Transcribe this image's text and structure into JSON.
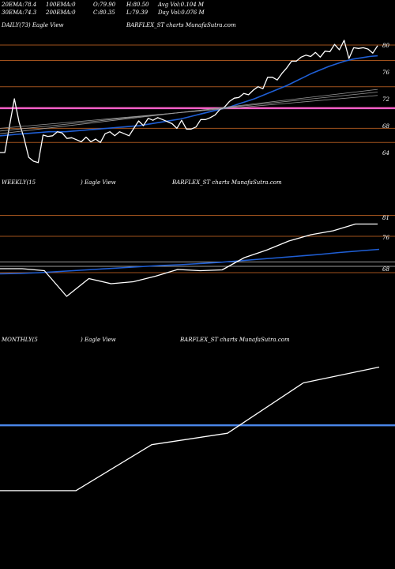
{
  "header": {
    "row1": [
      {
        "k": "20EMA:",
        "v": "78.4"
      },
      {
        "k": "100EMA:",
        "v": "0"
      },
      {
        "k": "O:",
        "v": "79.90"
      },
      {
        "k": "H:",
        "v": "80.50"
      },
      {
        "k": "Avg Vol:",
        "v": "0.104 M"
      }
    ],
    "row2": [
      {
        "k": "30EMA:",
        "v": "74.3"
      },
      {
        "k": "200EMA:",
        "v": "0"
      },
      {
        "k": "C:",
        "v": "80.35"
      },
      {
        "k": "L:",
        "v": "79.39"
      },
      {
        "k": "Day Vol:",
        "v": "0.076 M"
      }
    ]
  },
  "colors": {
    "background": "#000000",
    "price": "#ffffff",
    "ema": "#1f5fd6",
    "pink": "#ff5fc8",
    "orange": "#a0521d",
    "grey": "#9a9a9a",
    "monthly_line": "#4a86e8"
  },
  "chart_data": [
    {
      "type": "line",
      "panel_label": "DAILY(73) Eagle  View",
      "watermark": "BARFLEX_ST charts MunafaSutra.com",
      "ticks": [
        "80",
        "76",
        "72",
        "68",
        "64"
      ],
      "ylim": [
        62,
        82
      ],
      "h_lines": [
        {
          "value": 80,
          "color": "orange"
        },
        {
          "value": 77.7,
          "color": "orange"
        },
        {
          "value": 73.8,
          "color": "orange"
        },
        {
          "value": 70.6,
          "color": "pink"
        },
        {
          "value": 67.6,
          "color": "orange"
        },
        {
          "value": 65.5,
          "color": "orange"
        }
      ],
      "price": [
        64,
        64,
        68,
        72,
        68.5,
        66.2,
        63.3,
        62.7,
        62.5,
        66.6,
        66.4,
        66.5,
        67.1,
        66.9,
        66.1,
        66.2,
        65.9,
        65.6,
        66.3,
        65.6,
        66,
        65.5,
        66.8,
        67.1,
        66.5,
        67.1,
        66.8,
        66.5,
        67.6,
        68.7,
        68,
        69.1,
        68.8,
        69.2,
        68.9,
        68.6,
        68.3,
        67.6,
        68.8,
        67.5,
        67.5,
        67.8,
        68.9,
        68.9,
        69.2,
        69.6,
        70.4,
        70.8,
        71.6,
        72.1,
        72.2,
        72.8,
        72.6,
        73.3,
        73.8,
        73.5,
        75.2,
        75.2,
        74.8,
        75.8,
        76.6,
        77.6,
        77.6,
        78.2,
        78.5,
        78.3,
        78.9,
        78.2,
        79.1,
        79,
        80.1,
        79.3,
        80.7,
        78,
        79.6,
        79.5,
        79.6,
        79.4,
        78.8,
        79.9
      ],
      "ema_20": [
        66.5,
        66.6,
        66.7,
        66.8,
        66.9,
        67,
        67.1,
        67.1,
        67.1,
        67.2,
        67.3,
        67.4,
        67.5,
        67.6,
        67.7,
        67.8,
        67.9,
        68,
        68.2,
        68.4,
        68.6,
        68.8,
        69,
        69.3,
        69.6,
        69.9,
        70.2,
        70.5,
        70.8,
        71.2,
        71.6,
        72,
        72.5,
        73,
        73.5,
        74,
        74.6,
        75.2,
        75.8,
        76.3,
        76.8,
        77.2,
        77.6,
        77.9,
        78.1,
        78.3,
        78.4
      ]
    },
    {
      "type": "line",
      "panel_label": "WEEKLY(15",
      "panel_label_2": ") Eagle  View",
      "watermark": "BARFLEX_ST charts MunafaSutra.com",
      "ticks": [
        "81",
        "76",
        "68"
      ],
      "ylim": [
        54,
        86
      ],
      "h_lines": [
        {
          "value": 81.5,
          "color": "orange"
        },
        {
          "value": 76.2,
          "color": "orange"
        },
        {
          "value": 69.7,
          "color": "grey"
        },
        {
          "value": 68.6,
          "color": "grey"
        },
        {
          "value": 67,
          "color": "orange"
        }
      ],
      "price": [
        68,
        68,
        67.5,
        61,
        65.5,
        64.2,
        64.7,
        66.1,
        67.8,
        67.5,
        67.7,
        70.8,
        72.7,
        75,
        76.6,
        77.6,
        79.3,
        79.3
      ],
      "ema": [
        66.7,
        66.8,
        67,
        67.3,
        67.6,
        67.9,
        68.2,
        68.5,
        68.8,
        69,
        69.3,
        69.6,
        70,
        70.4,
        70.8,
        71.2,
        71.6,
        72.1,
        72.5,
        72.9
      ]
    },
    {
      "type": "line",
      "panel_label": "MONTHLY(5",
      "panel_label_2": ") Eagle  View",
      "watermark": "BARFLEX_ST charts MunafaSutra.com",
      "ylim": [
        62,
        84
      ],
      "h_lines": [
        {
          "value": 74.3,
          "color": "monthly_line"
        }
      ],
      "price": [
        65.2,
        65.2,
        71.6,
        73.2,
        80.2,
        82.4
      ]
    }
  ]
}
